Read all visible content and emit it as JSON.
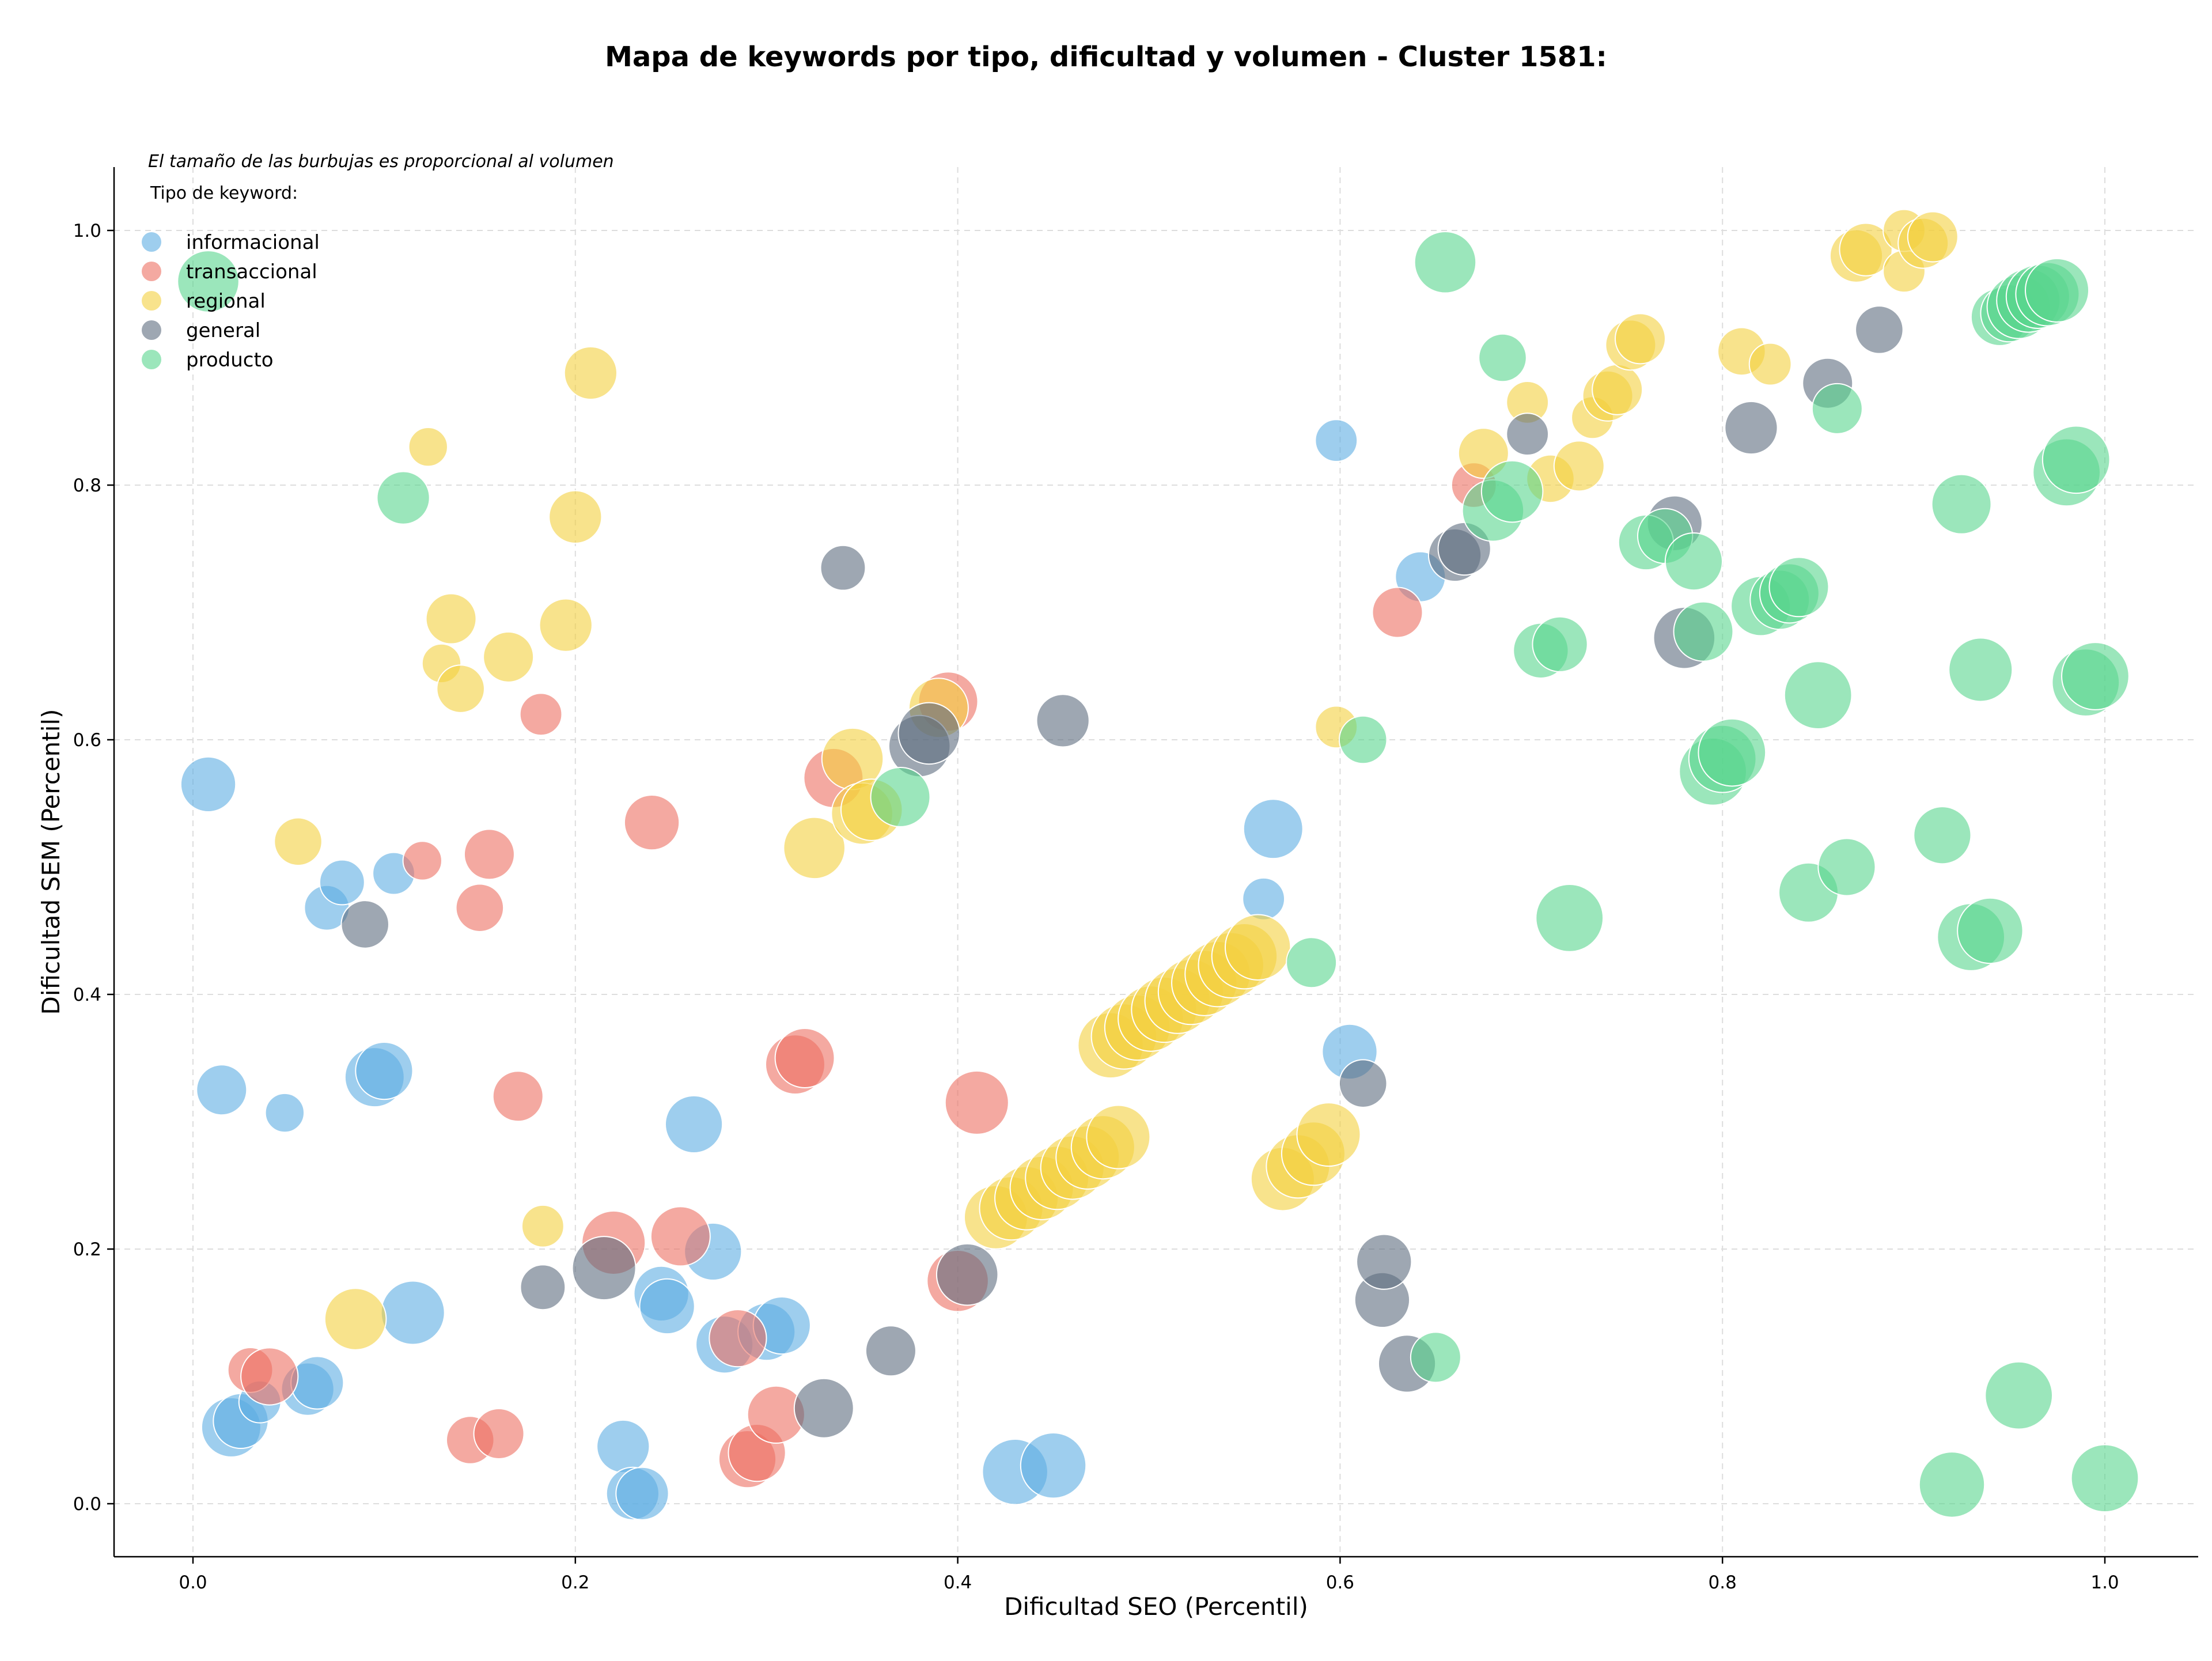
{
  "chart_data": {
    "type": "scatter",
    "title": "Mapa de keywords por tipo, dificultad y volumen - Cluster 1581:",
    "xlabel": "Dificultad SEO (Percentil)",
    "ylabel": "Dificultad SEM (Percentil)",
    "xlim": [
      -0.04,
      1.05
    ],
    "ylim": [
      -0.04,
      1.05
    ],
    "xticks": [
      "0.0",
      "0.2",
      "0.4",
      "0.6",
      "0.8",
      "1.0"
    ],
    "yticks": [
      "0.0",
      "0.2",
      "0.4",
      "0.6",
      "0.8",
      "1.0"
    ],
    "grid": true,
    "note": "El tamaño de las burbujas es proporcional al volumen",
    "legend_title": "Tipo de keyword:",
    "legend_position": "top-left",
    "series": [
      {
        "name": "informacional",
        "color": "#5DADE2",
        "points": [
          [
            0.008,
            0.565,
            1.2
          ],
          [
            0.015,
            0.325,
            1.0
          ],
          [
            0.02,
            0.06,
            1.4
          ],
          [
            0.025,
            0.065,
            1.2
          ],
          [
            0.035,
            0.08,
            0.7
          ],
          [
            0.048,
            0.307,
            0.6
          ],
          [
            0.06,
            0.09,
            1.1
          ],
          [
            0.065,
            0.095,
            1.1
          ],
          [
            0.07,
            0.468,
            0.8
          ],
          [
            0.078,
            0.488,
            0.8
          ],
          [
            0.095,
            0.335,
            1.4
          ],
          [
            0.1,
            0.34,
            1.3
          ],
          [
            0.105,
            0.495,
            0.7
          ],
          [
            0.115,
            0.15,
            1.6
          ],
          [
            0.225,
            0.045,
            1.1
          ],
          [
            0.23,
            0.008,
            1.1
          ],
          [
            0.235,
            0.008,
            1.1
          ],
          [
            0.245,
            0.165,
            1.2
          ],
          [
            0.248,
            0.155,
            1.2
          ],
          [
            0.262,
            0.298,
            1.3
          ],
          [
            0.272,
            0.198,
            1.3
          ],
          [
            0.278,
            0.125,
            1.3
          ],
          [
            0.3,
            0.135,
            1.3
          ],
          [
            0.308,
            0.14,
            1.3
          ],
          [
            0.43,
            0.025,
            1.7
          ],
          [
            0.45,
            0.03,
            1.7
          ],
          [
            0.56,
            0.475,
            0.7
          ],
          [
            0.565,
            0.53,
            1.4
          ],
          [
            0.598,
            0.835,
            0.7
          ],
          [
            0.605,
            0.355,
            1.2
          ],
          [
            0.642,
            0.728,
            1.0
          ]
        ]
      },
      {
        "name": "transaccional",
        "color": "#EC7063",
        "points": [
          [
            0.03,
            0.105,
            0.8
          ],
          [
            0.04,
            0.1,
            1.3
          ],
          [
            0.12,
            0.505,
            0.6
          ],
          [
            0.145,
            0.05,
            0.9
          ],
          [
            0.15,
            0.468,
            0.9
          ],
          [
            0.155,
            0.51,
            1.0
          ],
          [
            0.16,
            0.055,
            1.0
          ],
          [
            0.17,
            0.32,
            1.0
          ],
          [
            0.182,
            0.62,
            0.7
          ],
          [
            0.22,
            0.205,
            1.6
          ],
          [
            0.24,
            0.535,
            1.2
          ],
          [
            0.255,
            0.21,
            1.4
          ],
          [
            0.285,
            0.13,
            1.3
          ],
          [
            0.29,
            0.035,
            1.3
          ],
          [
            0.295,
            0.04,
            1.3
          ],
          [
            0.305,
            0.07,
            1.3
          ],
          [
            0.315,
            0.345,
            1.4
          ],
          [
            0.32,
            0.35,
            1.4
          ],
          [
            0.335,
            0.57,
            1.4
          ],
          [
            0.395,
            0.63,
            1.4
          ],
          [
            0.4,
            0.175,
            1.5
          ],
          [
            0.41,
            0.315,
            1.6
          ],
          [
            0.63,
            0.7,
            1.0
          ],
          [
            0.67,
            0.8,
            0.8
          ]
        ]
      },
      {
        "name": "regional",
        "color": "#F4D03F",
        "points": [
          [
            0.055,
            0.52,
            0.9
          ],
          [
            0.085,
            0.145,
            1.5
          ],
          [
            0.123,
            0.83,
            0.6
          ],
          [
            0.13,
            0.66,
            0.6
          ],
          [
            0.135,
            0.695,
            1.0
          ],
          [
            0.14,
            0.64,
            0.9
          ],
          [
            0.165,
            0.665,
            1.0
          ],
          [
            0.183,
            0.218,
            0.7
          ],
          [
            0.195,
            0.69,
            1.1
          ],
          [
            0.2,
            0.775,
            1.1
          ],
          [
            0.208,
            0.888,
            1.1
          ],
          [
            0.325,
            0.515,
            1.5
          ],
          [
            0.345,
            0.585,
            1.5
          ],
          [
            0.35,
            0.542,
            1.5
          ],
          [
            0.355,
            0.545,
            1.5
          ],
          [
            0.39,
            0.625,
            1.4
          ],
          [
            0.42,
            0.225,
            1.6
          ],
          [
            0.428,
            0.232,
            1.6
          ],
          [
            0.436,
            0.24,
            1.6
          ],
          [
            0.444,
            0.248,
            1.6
          ],
          [
            0.452,
            0.256,
            1.6
          ],
          [
            0.46,
            0.264,
            1.6
          ],
          [
            0.468,
            0.272,
            1.6
          ],
          [
            0.476,
            0.28,
            1.6
          ],
          [
            0.484,
            0.288,
            1.6
          ],
          [
            0.48,
            0.36,
            1.7
          ],
          [
            0.487,
            0.367,
            1.7
          ],
          [
            0.494,
            0.374,
            1.7
          ],
          [
            0.501,
            0.381,
            1.7
          ],
          [
            0.508,
            0.388,
            1.7
          ],
          [
            0.515,
            0.395,
            1.7
          ],
          [
            0.522,
            0.402,
            1.7
          ],
          [
            0.529,
            0.409,
            1.7
          ],
          [
            0.536,
            0.416,
            1.7
          ],
          [
            0.543,
            0.423,
            1.7
          ],
          [
            0.55,
            0.43,
            1.7
          ],
          [
            0.557,
            0.437,
            1.7
          ],
          [
            0.57,
            0.255,
            1.6
          ],
          [
            0.578,
            0.265,
            1.6
          ],
          [
            0.586,
            0.275,
            1.6
          ],
          [
            0.594,
            0.29,
            1.6
          ],
          [
            0.598,
            0.61,
            0.7
          ],
          [
            0.675,
            0.825,
            1.0
          ],
          [
            0.698,
            0.865,
            0.7
          ],
          [
            0.71,
            0.805,
            0.9
          ],
          [
            0.725,
            0.815,
            1.0
          ],
          [
            0.732,
            0.853,
            0.7
          ],
          [
            0.74,
            0.87,
            1.0
          ],
          [
            0.745,
            0.875,
            1.0
          ],
          [
            0.752,
            0.91,
            1.0
          ],
          [
            0.757,
            0.915,
            1.0
          ],
          [
            0.81,
            0.905,
            0.9
          ],
          [
            0.825,
            0.895,
            0.7
          ],
          [
            0.87,
            0.98,
            1.1
          ],
          [
            0.875,
            0.985,
            1.1
          ],
          [
            0.895,
            0.968,
            0.7
          ],
          [
            0.895,
            1.0,
            0.7
          ],
          [
            0.905,
            0.99,
            1.0
          ],
          [
            0.91,
            0.995,
            1.0
          ]
        ]
      },
      {
        "name": "general",
        "color": "#5D6D7E",
        "points": [
          [
            0.09,
            0.455,
            0.9
          ],
          [
            0.183,
            0.17,
            0.8
          ],
          [
            0.215,
            0.185,
            1.6
          ],
          [
            0.33,
            0.075,
            1.4
          ],
          [
            0.34,
            0.735,
            0.8
          ],
          [
            0.365,
            0.12,
            1.0
          ],
          [
            0.38,
            0.595,
            1.5
          ],
          [
            0.385,
            0.605,
            1.5
          ],
          [
            0.405,
            0.18,
            1.5
          ],
          [
            0.455,
            0.615,
            1.1
          ],
          [
            0.612,
            0.33,
            0.9
          ],
          [
            0.622,
            0.16,
            1.2
          ],
          [
            0.623,
            0.19,
            1.2
          ],
          [
            0.635,
            0.11,
            1.3
          ],
          [
            0.66,
            0.745,
            1.1
          ],
          [
            0.665,
            0.75,
            1.1
          ],
          [
            0.698,
            0.84,
            0.7
          ],
          [
            0.775,
            0.77,
            1.2
          ],
          [
            0.78,
            0.68,
            1.5
          ],
          [
            0.815,
            0.845,
            1.1
          ],
          [
            0.855,
            0.88,
            1.0
          ],
          [
            0.882,
            0.922,
            0.9
          ]
        ]
      },
      {
        "name": "producto",
        "color": "#58D68D",
        "points": [
          [
            0.008,
            0.96,
            1.5
          ],
          [
            0.11,
            0.79,
            1.1
          ],
          [
            0.37,
            0.555,
            1.4
          ],
          [
            0.585,
            0.425,
            1.0
          ],
          [
            0.612,
            0.6,
            0.9
          ],
          [
            0.65,
            0.115,
            1.0
          ],
          [
            0.655,
            0.975,
            1.5
          ],
          [
            0.68,
            0.78,
            1.5
          ],
          [
            0.685,
            0.9,
            0.9
          ],
          [
            0.69,
            0.795,
            1.5
          ],
          [
            0.705,
            0.67,
            1.2
          ],
          [
            0.715,
            0.675,
            1.2
          ],
          [
            0.72,
            0.46,
            1.8
          ],
          [
            0.76,
            0.755,
            1.2
          ],
          [
            0.77,
            0.76,
            1.2
          ],
          [
            0.785,
            0.74,
            1.3
          ],
          [
            0.79,
            0.685,
            1.4
          ],
          [
            0.795,
            0.575,
            1.8
          ],
          [
            0.8,
            0.585,
            1.8
          ],
          [
            0.805,
            0.59,
            1.8
          ],
          [
            0.82,
            0.705,
            1.4
          ],
          [
            0.83,
            0.71,
            1.4
          ],
          [
            0.835,
            0.715,
            1.4
          ],
          [
            0.84,
            0.72,
            1.4
          ],
          [
            0.845,
            0.48,
            1.4
          ],
          [
            0.85,
            0.635,
            1.8
          ],
          [
            0.86,
            0.86,
            1.0
          ],
          [
            0.865,
            0.5,
            1.3
          ],
          [
            0.915,
            0.525,
            1.3
          ],
          [
            0.92,
            0.015,
            1.7
          ],
          [
            0.925,
            0.785,
            1.4
          ],
          [
            0.93,
            0.445,
            1.8
          ],
          [
            0.935,
            0.655,
            1.6
          ],
          [
            0.94,
            0.45,
            1.7
          ],
          [
            0.945,
            0.932,
            1.3
          ],
          [
            0.95,
            0.935,
            1.3
          ],
          [
            0.955,
            0.94,
            1.6
          ],
          [
            0.955,
            0.085,
            1.8
          ],
          [
            0.96,
            0.945,
            1.6
          ],
          [
            0.965,
            0.948,
            1.6
          ],
          [
            0.97,
            0.95,
            1.6
          ],
          [
            0.975,
            0.953,
            1.6
          ],
          [
            0.98,
            0.81,
            1.8
          ],
          [
            0.985,
            0.82,
            1.8
          ],
          [
            0.99,
            0.645,
            1.8
          ],
          [
            0.995,
            0.65,
            1.8
          ],
          [
            1.0,
            0.02,
            1.8
          ]
        ]
      }
    ]
  }
}
